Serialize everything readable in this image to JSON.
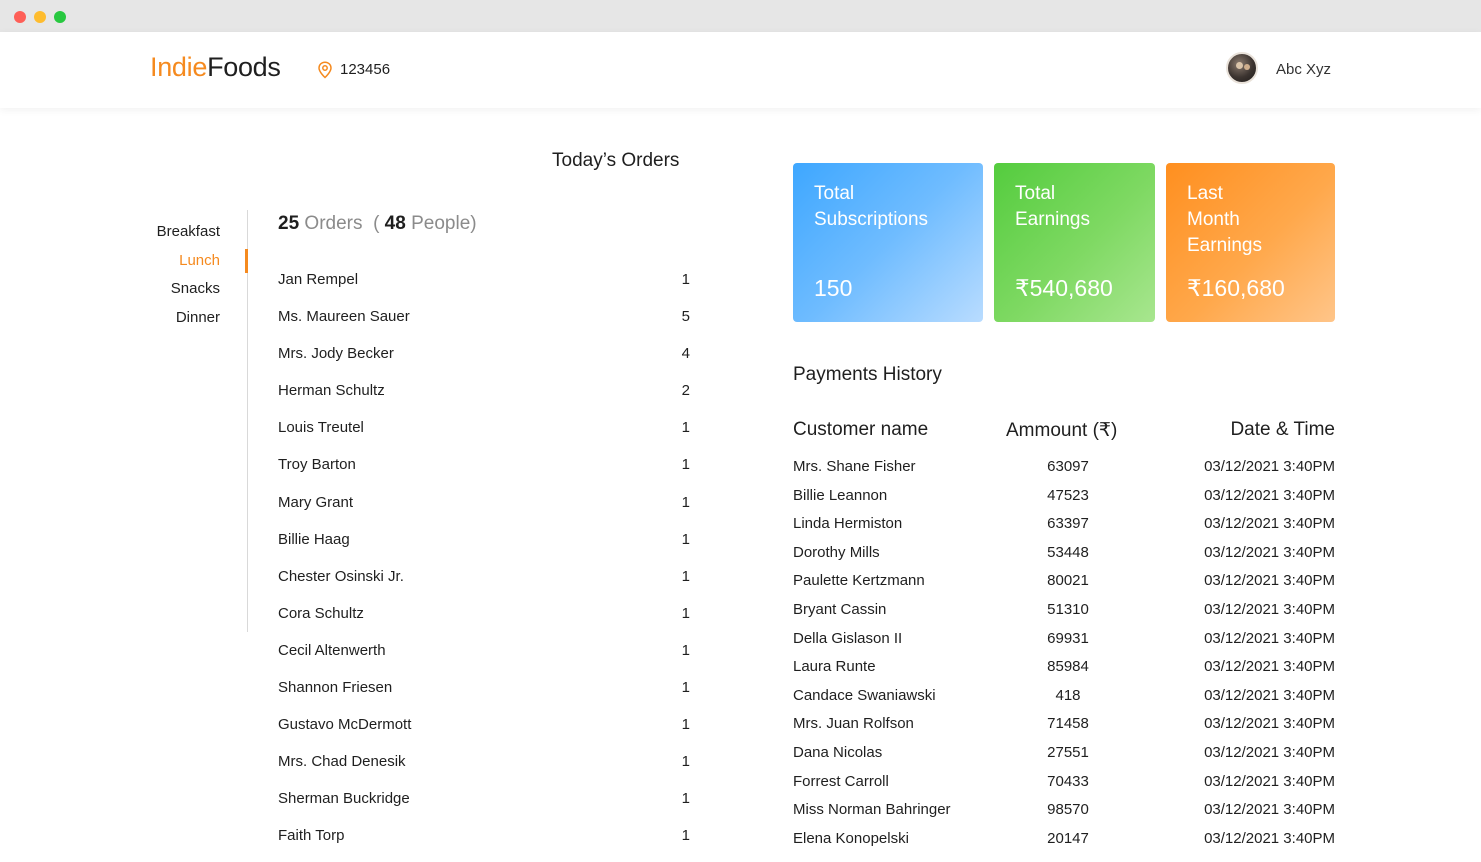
{
  "header": {
    "brand_part1": "Indie",
    "brand_part2": "Foods",
    "location_icon": "location-pin-icon",
    "pincode": "123456",
    "user_name": "Abc Xyz"
  },
  "orders": {
    "title": "Today’s Orders",
    "meal_tabs": [
      "Breakfast",
      "Lunch",
      "Snacks",
      "Dinner"
    ],
    "active_tab": "Lunch",
    "summary": {
      "orders_count": "25",
      "orders_label": "Orders",
      "open": "(",
      "people_count": "48",
      "people_label": "People",
      "close": ")"
    },
    "items": [
      {
        "name": "Jan Rempel",
        "qty": "1"
      },
      {
        "name": "Ms. Maureen Sauer",
        "qty": "5"
      },
      {
        "name": "Mrs. Jody Becker",
        "qty": "4"
      },
      {
        "name": "Herman Schultz",
        "qty": "2"
      },
      {
        "name": "Louis Treutel",
        "qty": "1"
      },
      {
        "name": "Troy Barton",
        "qty": "1"
      },
      {
        "name": "Mary Grant",
        "qty": "1"
      },
      {
        "name": "Billie Haag",
        "qty": "1"
      },
      {
        "name": "Chester Osinski Jr.",
        "qty": "1"
      },
      {
        "name": "Cora Schultz",
        "qty": "1"
      },
      {
        "name": "Cecil Altenwerth",
        "qty": "1"
      },
      {
        "name": "Shannon Friesen",
        "qty": "1"
      },
      {
        "name": "Gustavo McDermott",
        "qty": "1"
      },
      {
        "name": "Mrs. Chad Denesik",
        "qty": "1"
      },
      {
        "name": "Sherman Buckridge",
        "qty": "1"
      },
      {
        "name": "Faith Torp",
        "qty": "1"
      }
    ]
  },
  "cards": [
    {
      "label_line1": "Total",
      "label_line2": "Subscriptions",
      "label_line3": "",
      "value": "150",
      "color": "#3ea7ff"
    },
    {
      "label_line1": "Total",
      "label_line2": "Earnings",
      "label_line3": "",
      "value": "₹540,680",
      "color": "#54cc3e"
    },
    {
      "label_line1": "Last",
      "label_line2": "Month",
      "label_line3": "Earnings",
      "value": "₹160,680",
      "color": "#ff8f1f"
    }
  ],
  "payments": {
    "title": "Payments History",
    "columns": [
      "Customer name",
      "Ammount (₹)",
      "Date  & Time"
    ],
    "rows": [
      {
        "name": "Mrs. Shane Fisher",
        "amount": "63097",
        "datetime": "03/12/2021 3:40PM"
      },
      {
        "name": "Billie Leannon",
        "amount": "47523",
        "datetime": "03/12/2021 3:40PM"
      },
      {
        "name": "Linda Hermiston",
        "amount": "63397",
        "datetime": "03/12/2021 3:40PM"
      },
      {
        "name": "Dorothy Mills",
        "amount": "53448",
        "datetime": "03/12/2021 3:40PM"
      },
      {
        "name": "Paulette Kertzmann",
        "amount": "80021",
        "datetime": "03/12/2021 3:40PM"
      },
      {
        "name": "Bryant Cassin",
        "amount": "51310",
        "datetime": "03/12/2021 3:40PM"
      },
      {
        "name": "Della Gislason II",
        "amount": "69931",
        "datetime": "03/12/2021 3:40PM"
      },
      {
        "name": "Laura Runte",
        "amount": "85984",
        "datetime": "03/12/2021 3:40PM"
      },
      {
        "name": "Candace Swaniawski",
        "amount": "418",
        "datetime": "03/12/2021 3:40PM"
      },
      {
        "name": "Mrs. Juan Rolfson",
        "amount": "71458",
        "datetime": "03/12/2021 3:40PM"
      },
      {
        "name": "Dana Nicolas",
        "amount": "27551",
        "datetime": "03/12/2021 3:40PM"
      },
      {
        "name": "Forrest Carroll",
        "amount": "70433",
        "datetime": "03/12/2021 3:40PM"
      },
      {
        "name": "Miss Norman Bahringer",
        "amount": "98570",
        "datetime": "03/12/2021 3:40PM"
      },
      {
        "name": "Elena Konopelski",
        "amount": "20147",
        "datetime": "03/12/2021 3:40PM"
      }
    ]
  },
  "colors": {
    "accent": "#f58a1f",
    "text": "#1f1f1f",
    "muted": "#8b8b8b"
  }
}
